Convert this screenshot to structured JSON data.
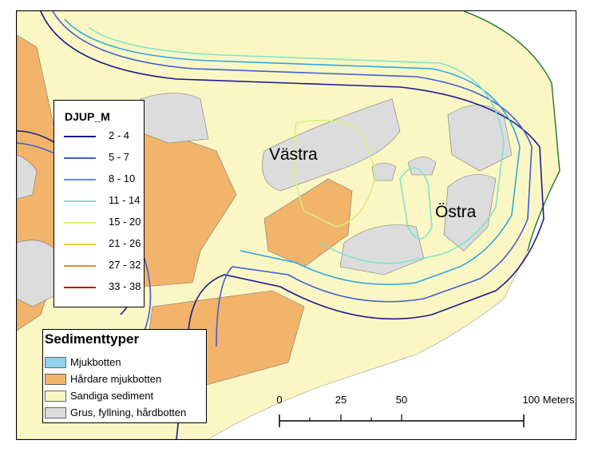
{
  "map": {
    "places": [
      {
        "name": "Västra"
      },
      {
        "name": "Östra"
      }
    ]
  },
  "depth_legend": {
    "title": "DJUP_M",
    "items": [
      {
        "label": "2 - 4",
        "color": "#1a1a8c"
      },
      {
        "label": "5 - 7",
        "color": "#3f5fd0"
      },
      {
        "label": "8 - 10",
        "color": "#2fa6e0"
      },
      {
        "label": "11 - 14",
        "color": "#7fe3c8"
      },
      {
        "label": "15 - 20",
        "color": "#d6ef7a"
      },
      {
        "label": "21 - 26",
        "color": "#f1cf52"
      },
      {
        "label": "27 - 32",
        "color": "#d68a3a"
      },
      {
        "label": "33 - 38",
        "color": "#c01818"
      }
    ]
  },
  "sediment_legend": {
    "title": "Sedimenttyper",
    "items": [
      {
        "label": "Mjukbotten",
        "color": "#8fd3ef"
      },
      {
        "label": "Hårdare mjukbotten",
        "color": "#f2b46a"
      },
      {
        "label": "Sandiga sediment",
        "color": "#fbf7c4"
      },
      {
        "label": "Grus, fyllning, hårdbotten",
        "color": "#dcdcdc"
      }
    ]
  },
  "scale_bar": {
    "ticks": [
      "0",
      "25",
      "50",
      "100 Meters"
    ]
  }
}
